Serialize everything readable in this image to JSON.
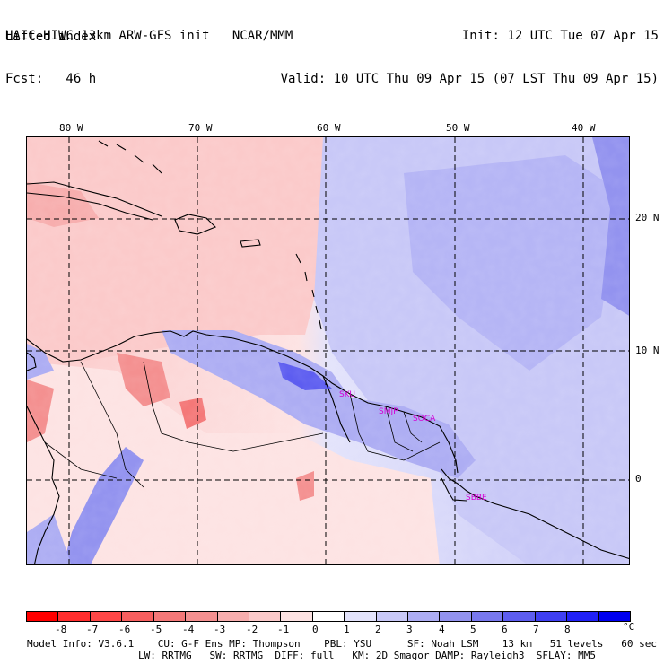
{
  "header": {
    "left_line1": "HAIC-HIWC 13km ARW-GFS init   NCAR/MMM",
    "left_line2": "Fcst:   46 h",
    "right_line1": "Init: 12 UTC Tue 07 Apr 15",
    "right_line2": "Valid: 10 UTC Thu 09 Apr 15 (07 LST Thu 09 Apr 15)",
    "field": "Lifted index"
  },
  "map": {
    "lon_labels": [
      "80 W",
      "70 W",
      "60 W",
      "50 W",
      "40 W"
    ],
    "lat_labels": [
      "20 N",
      "10 N",
      "0"
    ],
    "stations": [
      "SKU",
      "SMJP",
      "SOCA",
      "SBBE"
    ]
  },
  "colorbar": {
    "labels": [
      "-8",
      "-7",
      "-6",
      "-5",
      "-4",
      "-3",
      "-2",
      "-1",
      "0",
      "1",
      "2",
      "3",
      "4",
      "5",
      "6",
      "7",
      "8"
    ],
    "unit": "°C",
    "colors": [
      "#ff0000",
      "#ff2d2d",
      "#fe4747",
      "#f75f5f",
      "#f47878",
      "#f49090",
      "#f7aeae",
      "#fbcaca",
      "#fde3e3",
      "#ffffff",
      "#e3e3fb",
      "#c8c8f7",
      "#adadf3",
      "#9393ef",
      "#7878ee",
      "#5d5df0",
      "#3f3ff2",
      "#2121f6",
      "#0000f0"
    ]
  },
  "footer": {
    "line1": "Model Info: V3.6.1    CU: G-F Ens MP: Thompson    PBL: YSU      SF: Noah LSM    13 km   51 levels   60 sec",
    "line2": "LW: RRTMG   SW: RRTMG  DIFF: full   KM: 2D Smagor DAMP: Rayleigh3  SFLAY: MM5"
  }
}
